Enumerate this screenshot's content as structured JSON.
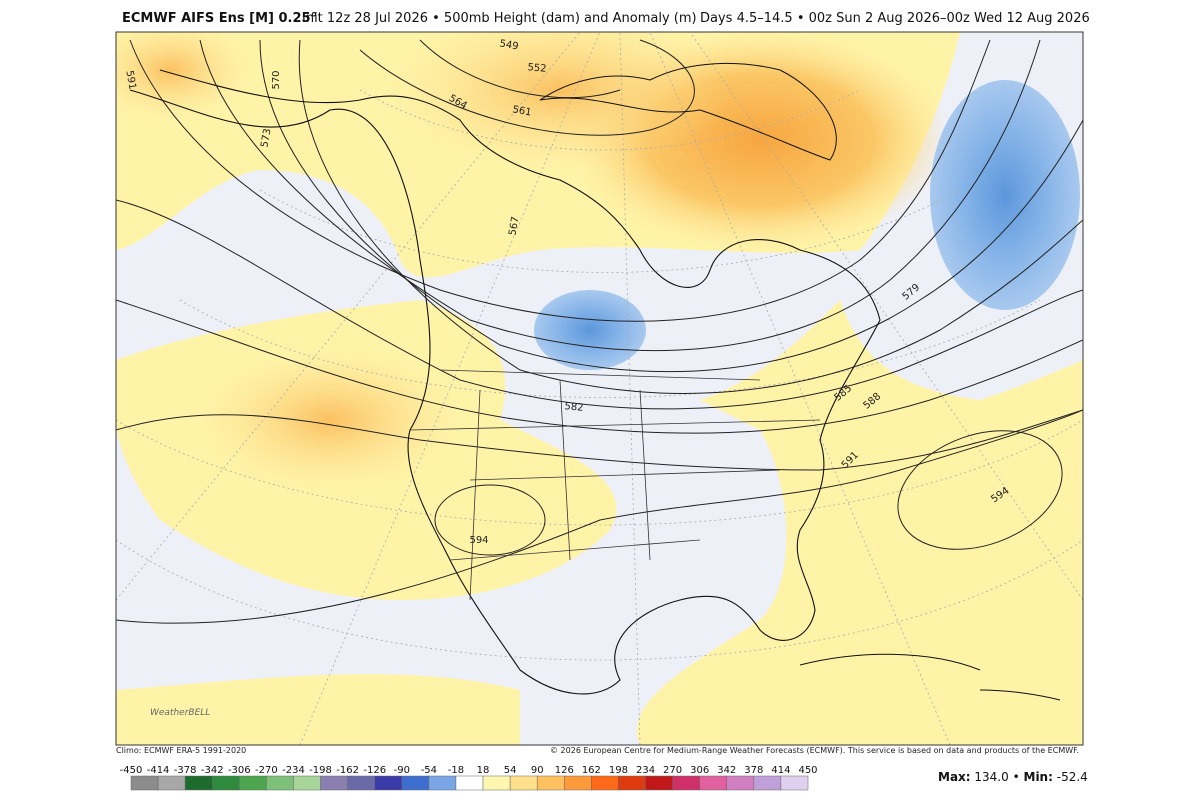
{
  "header": {
    "title": "ECMWF AIFS Ens [M] 0.25°",
    "init": "Init 12z 28 Jul 2026 • 500mb Height (dam) and Anomaly (m)",
    "period": "Days 4.5–14.5 • 00z Sun 2 Aug 2026–00z Wed 12 Aug 2026"
  },
  "map": {
    "contour_labels": [
      "591",
      "570",
      "573",
      "549",
      "552",
      "564",
      "561",
      "567",
      "579",
      "582",
      "585",
      "588",
      "591",
      "594",
      "594"
    ],
    "logo": "WeatherBELL"
  },
  "footer": {
    "climo": "Climo: ECMWF ERA-5 1991-2020",
    "copyright": "© 2026 European Centre for Medium-Range Weather Forecasts (ECMWF). This service is based on data and products of the ECMWF.",
    "colorbar": {
      "ticks": [
        -450,
        -414,
        -378,
        -342,
        -306,
        -270,
        -234,
        -198,
        -162,
        -126,
        -90,
        -54,
        -18,
        18,
        54,
        90,
        126,
        162,
        198,
        234,
        270,
        306,
        342,
        378,
        414,
        450
      ],
      "colors": [
        "#8c8c8c",
        "#a8a8a8",
        "#1e6b2e",
        "#2e8b3e",
        "#4da64d",
        "#7cc07a",
        "#a8d59a",
        "#8a7fb0",
        "#6a6aa8",
        "#3a3aa8",
        "#3e6fd0",
        "#7aa6e6",
        "#ffffff",
        "#fff7b0",
        "#ffe08a",
        "#ffc060",
        "#ff9a3a",
        "#ff6a1a",
        "#e03a10",
        "#c01818",
        "#d0306a",
        "#e060a0",
        "#d080c0",
        "#c0a0d8",
        "#e0d0f0"
      ]
    },
    "max_label": "Max:",
    "max": "134.0",
    "separator": "•",
    "min_label": "Min:",
    "min": "-52.4"
  }
}
